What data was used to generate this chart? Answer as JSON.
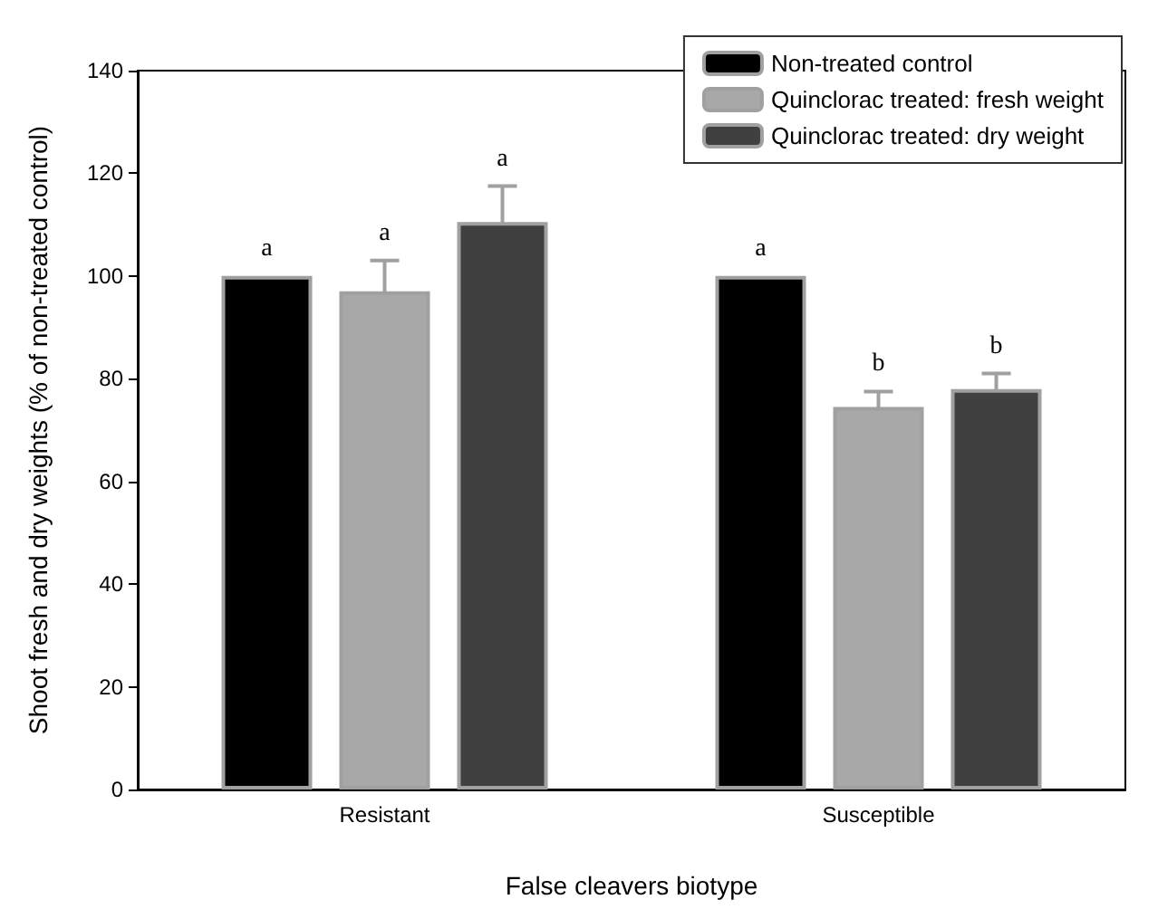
{
  "chart_data": {
    "type": "bar",
    "xlabel": "False cleavers biotype",
    "ylabel": "Shoot fresh and dry weights (% of non-treated control)",
    "categories": [
      "Resistant",
      "Susceptible"
    ],
    "series": [
      {
        "name": "Non-treated control",
        "color": "#000000",
        "values": [
          100,
          100
        ],
        "value_labels": [
          "a",
          "a"
        ]
      },
      {
        "name": "Quinclorac treated: fresh weight",
        "color": "#a8a8a8",
        "values": [
          97,
          74.5
        ],
        "errors": [
          6,
          3
        ],
        "value_labels": [
          "a",
          "b"
        ]
      },
      {
        "name": "Quinclorac treated: dry weight",
        "color": "#404040",
        "values": [
          110.5,
          78
        ],
        "errors": [
          7,
          3
        ],
        "value_labels": [
          "a",
          "b"
        ]
      }
    ],
    "ylim": [
      0,
      140
    ],
    "yticks": [
      0,
      20,
      40,
      60,
      80,
      100,
      120,
      140
    ],
    "legend": "top right",
    "grid": false
  }
}
